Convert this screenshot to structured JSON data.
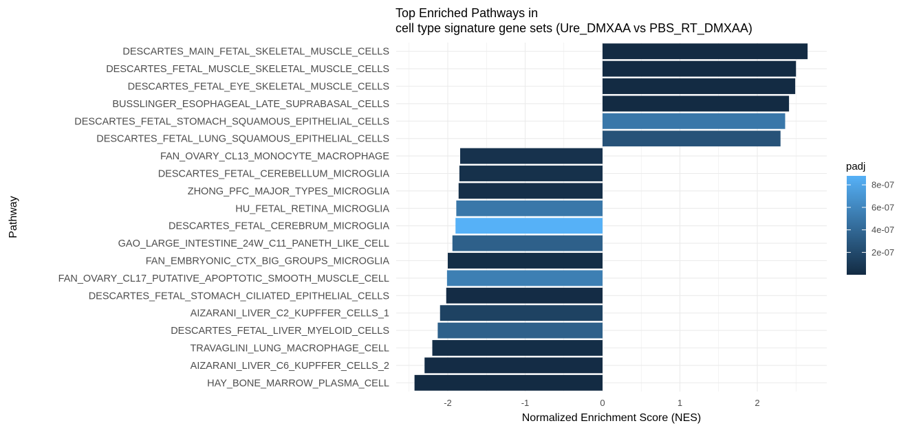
{
  "chart_data": {
    "type": "bar",
    "orientation": "horizontal",
    "title_line1": "Top Enriched Pathways in",
    "title_line2": "cell type signature gene sets (Ure_DMXAA vs PBS_RT_DMXAA)",
    "xlabel": "Normalized Enrichment Score (NES)",
    "ylabel": "Pathway",
    "xlim": [
      -2.43,
      2.9
    ],
    "xticks": [
      -2,
      -1,
      0,
      1,
      2
    ],
    "xtick_labels": [
      "-2",
      "-1",
      "0",
      "1",
      "2"
    ],
    "grid": true,
    "legend": {
      "title": "padj",
      "placement": "right",
      "range": [
        1e-09,
        8.8e-07
      ],
      "ticks": [
        2e-07,
        4e-07,
        6e-07,
        8e-07
      ],
      "tick_labels": [
        "2e-07",
        "4e-07",
        "6e-07",
        "8e-07"
      ],
      "color_low": "#132B43",
      "color_high": "#56B1F7"
    },
    "bars": [
      {
        "label": "DESCARTES_MAIN_FETAL_SKELETAL_MUSCLE_CELLS",
        "nes": 2.65,
        "padj": 1e-09
      },
      {
        "label": "DESCARTES_FETAL_MUSCLE_SKELETAL_MUSCLE_CELLS",
        "nes": 2.5,
        "padj": 1e-09
      },
      {
        "label": "DESCARTES_FETAL_EYE_SKELETAL_MUSCLE_CELLS",
        "nes": 2.49,
        "padj": 1e-09
      },
      {
        "label": "BUSSLINGER_ESOPHAGEAL_LATE_SUPRABASAL_CELLS",
        "nes": 2.41,
        "padj": 1e-09
      },
      {
        "label": "DESCARTES_FETAL_STOMACH_SQUAMOUS_EPITHELIAL_CELLS",
        "nes": 2.36,
        "padj": 5e-07
      },
      {
        "label": "DESCARTES_FETAL_LUNG_SQUAMOUS_EPITHELIAL_CELLS",
        "nes": 2.3,
        "padj": 2.6e-07
      },
      {
        "label": "FAN_OVARY_CL13_MONOCYTE_MACROPHAGE",
        "nes": -1.84,
        "padj": 5e-08
      },
      {
        "label": "DESCARTES_FETAL_CEREBELLUM_MICROGLIA",
        "nes": -1.85,
        "padj": 4e-08
      },
      {
        "label": "ZHONG_PFC_MAJOR_TYPES_MICROGLIA",
        "nes": -1.86,
        "padj": 3e-08
      },
      {
        "label": "HU_FETAL_RETINA_MICROGLIA",
        "nes": -1.89,
        "padj": 5e-07
      },
      {
        "label": "DESCARTES_FETAL_CEREBRUM_MICROGLIA",
        "nes": -1.9,
        "padj": 8.8e-07
      },
      {
        "label": "GAO_LARGE_INTESTINE_24W_C11_PANETH_LIKE_CELL",
        "nes": -1.94,
        "padj": 3.5e-07
      },
      {
        "label": "FAN_EMBRYONIC_CTX_BIG_GROUPS_MICROGLIA",
        "nes": -2.0,
        "padj": 2e-08
      },
      {
        "label": "FAN_OVARY_CL17_PUTATIVE_APOPTOTIC_SMOOTH_MUSCLE_CELL",
        "nes": -2.01,
        "padj": 5.5e-07
      },
      {
        "label": "DESCARTES_FETAL_STOMACH_CILIATED_EPITHELIAL_CELLS",
        "nes": -2.02,
        "padj": 1e-08
      },
      {
        "label": "AIZARANI_LIVER_C2_KUPFFER_CELLS_1",
        "nes": -2.1,
        "padj": 1.5e-07
      },
      {
        "label": "DESCARTES_FETAL_LIVER_MYELOID_CELLS",
        "nes": -2.13,
        "padj": 3.5e-07
      },
      {
        "label": "TRAVAGLINI_LUNG_MACROPHAGE_CELL",
        "nes": -2.2,
        "padj": 2e-08
      },
      {
        "label": "AIZARANI_LIVER_C6_KUPFFER_CELLS_2",
        "nes": -2.3,
        "padj": 1e-08
      },
      {
        "label": "HAY_BONE_MARROW_PLASMA_CELL",
        "nes": -2.43,
        "padj": 1e-09
      }
    ]
  }
}
